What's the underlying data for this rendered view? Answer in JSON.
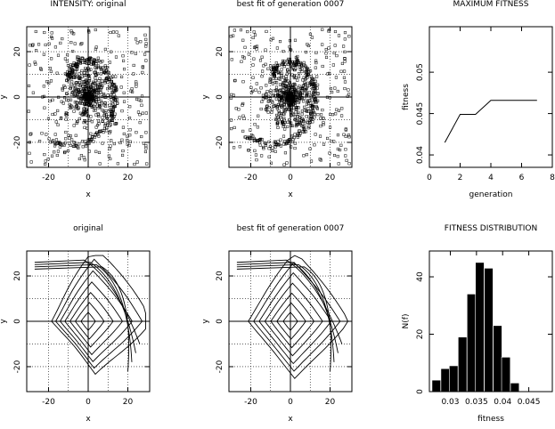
{
  "chart_data": [
    {
      "id": "p1",
      "type": "scatter",
      "title": "INTENSITY: original",
      "xlabel": "x",
      "ylabel": "y",
      "xlim": [
        -31,
        31
      ],
      "ylim": [
        -31,
        31
      ],
      "xticks": [
        "-20",
        "0",
        "20"
      ],
      "yticks": [
        "-20",
        "0",
        "20"
      ],
      "grid": "dotted",
      "crosshair": true,
      "markers": "small open squares",
      "description_of_points": "dense cluster of small square markers around the origin with a curved spiral arm sweeping from upper-left over the top and down the right side"
    },
    {
      "id": "p2",
      "type": "scatter",
      "title": "best fit of generation 0007",
      "xlabel": "x",
      "ylabel": "y",
      "xlim": [
        -31,
        31
      ],
      "ylim": [
        -31,
        31
      ],
      "xticks": [
        "-20",
        "0",
        "20"
      ],
      "yticks": [
        "-20",
        "0",
        "20"
      ],
      "grid": "dotted",
      "crosshair": true,
      "markers": "small open squares"
    },
    {
      "id": "p3",
      "type": "line",
      "title": "MAXIMUM FITNESS",
      "xlabel": "generation",
      "ylabel": "fitness",
      "xlim": [
        0,
        8
      ],
      "ylim": [
        0.0385,
        0.0555
      ],
      "xticks": [
        "0",
        "2",
        "4",
        "6",
        "8"
      ],
      "yticks": [
        "0.04",
        "0.045",
        "0.05"
      ],
      "x": [
        1,
        2,
        3,
        4,
        5,
        6,
        7
      ],
      "y": [
        0.0415,
        0.0449,
        0.0449,
        0.0466,
        0.0466,
        0.0466,
        0.0466
      ]
    },
    {
      "id": "p4",
      "type": "contour",
      "title": "original",
      "xlabel": "x",
      "ylabel": "y",
      "xlim": [
        -31,
        31
      ],
      "ylim": [
        -31,
        31
      ],
      "xticks": [
        "-20",
        "0",
        "20"
      ],
      "yticks": [
        "-20",
        "0",
        "20"
      ],
      "grid": "dotted",
      "crosshair": true
    },
    {
      "id": "p5",
      "type": "contour",
      "title": "best fit of generation 0007",
      "xlabel": "x",
      "ylabel": "y",
      "xlim": [
        -31,
        31
      ],
      "ylim": [
        -31,
        31
      ],
      "xticks": [
        "-20",
        "0",
        "20"
      ],
      "yticks": [
        "-20",
        "0",
        "20"
      ],
      "grid": "dotted",
      "crosshair": true
    },
    {
      "id": "p6",
      "type": "bar",
      "title": "FITNESS DISTRIBUTION",
      "xlabel": "fitness",
      "ylabel": "N(f)",
      "xlim": [
        0.026,
        0.0495
      ],
      "ylim": [
        0,
        49
      ],
      "xticks": [
        "0.03",
        "0.035",
        "0.04",
        "0.045"
      ],
      "yticks": [
        "0",
        "20",
        "40"
      ],
      "bin_width": 0.00166,
      "bins": [
        0.0265,
        0.0282,
        0.0298,
        0.0315,
        0.0332,
        0.0348,
        0.0365,
        0.0382,
        0.0398,
        0.0415,
        0.0432,
        0.0448,
        0.0465,
        0.0482
      ],
      "values": [
        4,
        8,
        9,
        19,
        34,
        45,
        43,
        23,
        12,
        3,
        0,
        0,
        0,
        0
      ]
    }
  ]
}
